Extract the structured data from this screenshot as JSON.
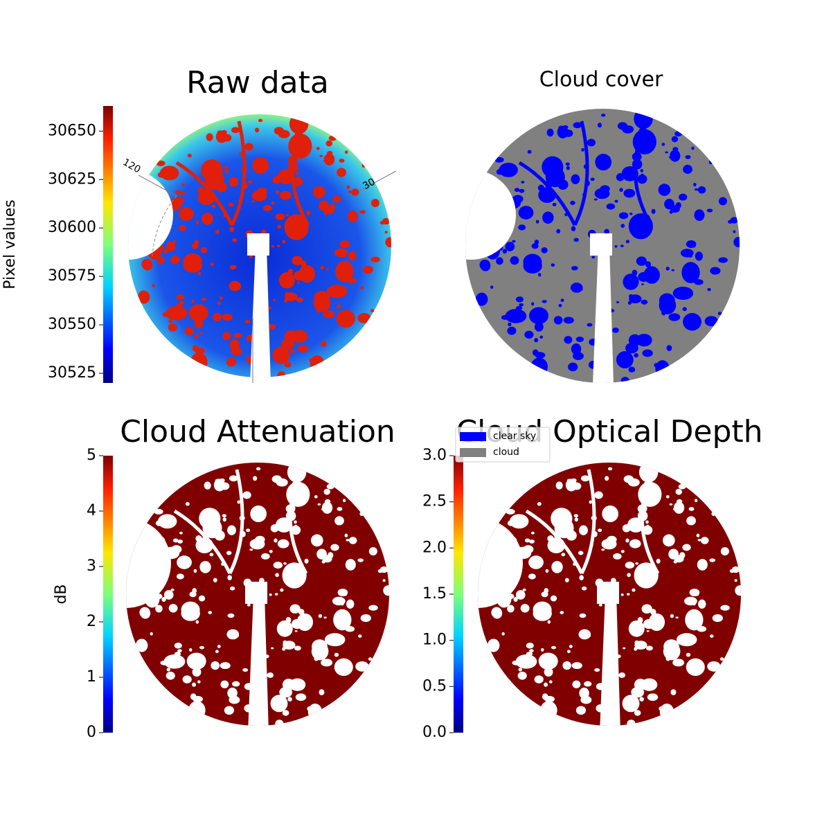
{
  "chart_data": [
    {
      "type": "image",
      "title": "Raw data",
      "colorbar_label": "Pixel values",
      "colormap": "jet",
      "clim": [
        30520,
        30663
      ],
      "cticks": [
        30525,
        30550,
        30575,
        30600,
        30625,
        30650
      ],
      "annotations": [
        "120",
        "30"
      ]
    },
    {
      "type": "image",
      "title": "Cloud cover",
      "series": [
        {
          "name": "clear sky",
          "color": "#0000ff"
        },
        {
          "name": "cloud",
          "color": "#808080"
        }
      ]
    },
    {
      "type": "image",
      "title": "Cloud Attenuation",
      "colorbar_label": "dB",
      "colormap": "jet",
      "clim": [
        0,
        5
      ],
      "cticks": [
        0,
        1,
        2,
        3,
        4,
        5
      ],
      "color": "#800000"
    },
    {
      "type": "image",
      "title": "Cloud Optical Depth",
      "colormap": "jet",
      "clim": [
        0,
        3
      ],
      "cticks": [
        {
          "value": 0,
          "label": "0.0"
        },
        0.5,
        {
          "value": 1,
          "label": "1.0"
        },
        1.5,
        {
          "value": 2,
          "label": "2.0"
        },
        2.5,
        {
          "value": 3,
          "label": "3.0"
        }
      ],
      "color": "#800000"
    }
  ]
}
